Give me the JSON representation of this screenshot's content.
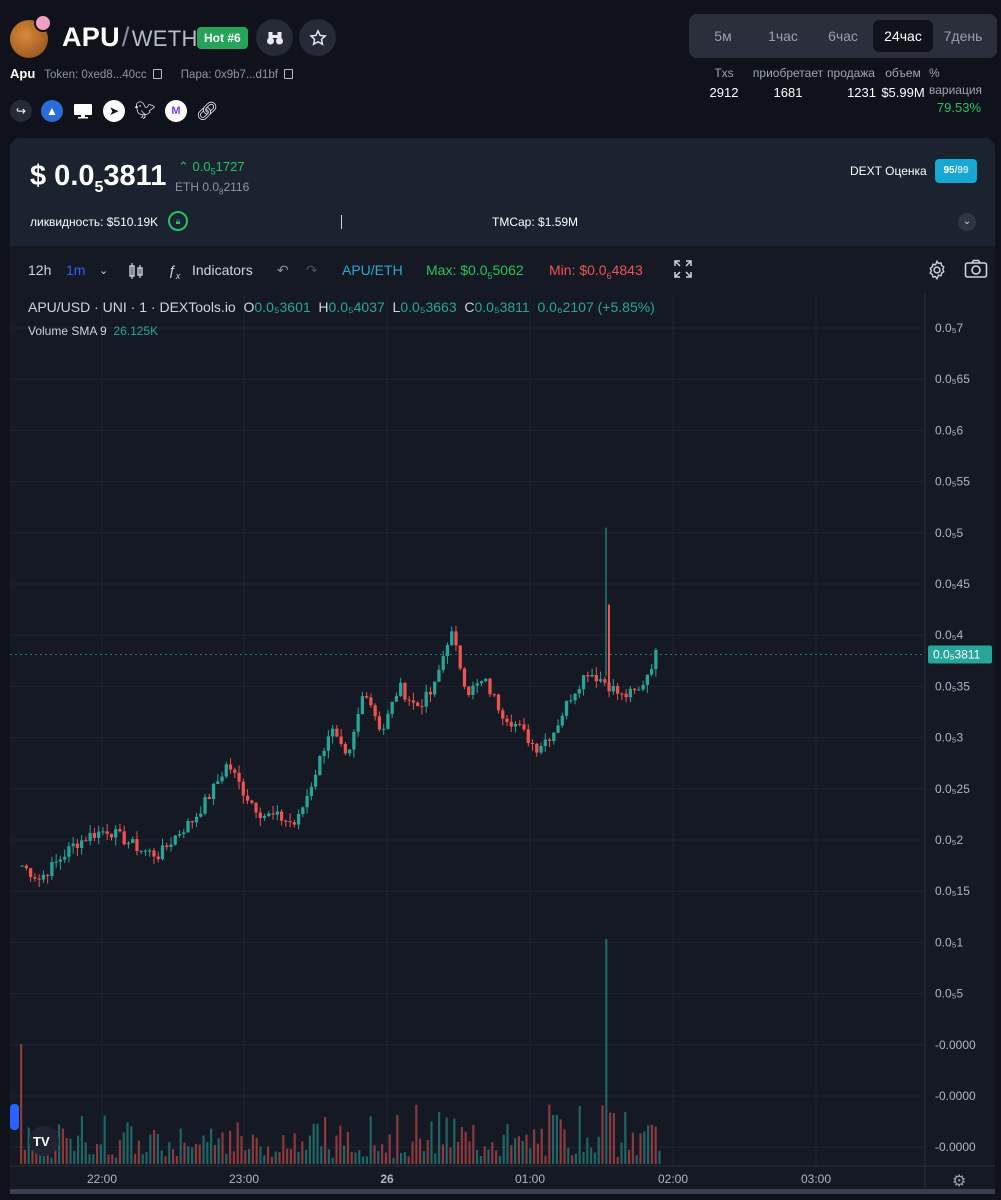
{
  "header": {
    "base": "APU",
    "separator": "/",
    "quote": "WETH",
    "hot_badge": "Hot #6",
    "token_name": "Apu",
    "token_label": "Token: 0xed8...40cc",
    "pair_label": "Пара: 0x9b7...d1bf"
  },
  "timeframes": {
    "items": [
      "5м",
      "1час",
      "6час",
      "24час",
      "7день"
    ],
    "active": "24час"
  },
  "stats": {
    "txs_label": "Txs",
    "txs": "2912",
    "buys_label": "приобретает",
    "buys": "1681",
    "sells_label": "продажа",
    "sells": "1231",
    "volume_label": "объем",
    "volume": "$5.99M",
    "var_label_1": "%",
    "var_label_2": "вариация",
    "variation": "79.53%"
  },
  "price_panel": {
    "price_prefix": "$ 0.0",
    "price_sub": "5",
    "price_digits": "3811",
    "change_prefix": "0.0",
    "change_sub": "5",
    "change_digits": "1727",
    "eth_prefix": "ETH 0.0",
    "eth_sub": "8",
    "eth_digits": "2116",
    "dext_label": "DEXT Оценка",
    "score": "95",
    "score_max": "99",
    "liquidity_label": "ликвидность:",
    "liquidity": "$510.19K",
    "mcap_label": "TMCap:",
    "mcap": "$1.59M"
  },
  "toolbar": {
    "interval_12h": "12h",
    "interval_1m": "1m",
    "indicators": "Indicators",
    "pair": "APU/ETH",
    "max_label": "Max: $0.0",
    "max_sub": "5",
    "max_digits": "5062",
    "min_label": "Min: $0.0",
    "min_sub": "6",
    "min_digits": "4843"
  },
  "legend": {
    "symbol": "APU/USD · UNI · 1 · DEXTools.io",
    "o": "0.0₅3601",
    "h": "0.0₅4037",
    "l": "0.0₅3663",
    "c": "0.0₅3811",
    "change": "0.0₆2107 (+5.85%)",
    "volume_label": "Volume SMA 9",
    "volume_value": "26.125K"
  },
  "colors": {
    "up": "#26a69a",
    "down": "#ef5350",
    "accent_green": "#22c55e",
    "score_bg": "#17a7d3",
    "background": "#151924"
  },
  "chart_data": {
    "type": "candlestick",
    "y_unit_note": "price in units of 1e-5 USD",
    "y_ticks": [
      {
        "label": "0.0₅7",
        "value": 7.0
      },
      {
        "label": "0.0₅65",
        "value": 6.5
      },
      {
        "label": "0.0₅6",
        "value": 6.0
      },
      {
        "label": "0.0₅55",
        "value": 5.5
      },
      {
        "label": "0.0₅5",
        "value": 5.0
      },
      {
        "label": "0.0₅45",
        "value": 4.5
      },
      {
        "label": "0.0₅4",
        "value": 4.0
      },
      {
        "label": "0.0₅35",
        "value": 3.5
      },
      {
        "label": "0.0₅3",
        "value": 3.0
      },
      {
        "label": "0.0₅25",
        "value": 2.5
      },
      {
        "label": "0.0₅2",
        "value": 2.0
      },
      {
        "label": "0.0₅15",
        "value": 1.5
      },
      {
        "label": "0.0₅1",
        "value": 1.0
      },
      {
        "label": "0.0₅5",
        "value": 0.5
      },
      {
        "label": "-0.0000",
        "value": 0.0
      },
      {
        "label": "-0.0000",
        "value": -0.5
      },
      {
        "label": "-0.0000",
        "value": -1.0
      }
    ],
    "x_ticks": [
      "22:00",
      "23:00",
      "26",
      "01:00",
      "02:00",
      "03:00"
    ],
    "last_price_label": "0.0₅3811",
    "last_price": 3.811,
    "series_close": [
      1.75,
      1.62,
      1.78,
      1.95,
      2.05,
      2.1,
      2.0,
      1.9,
      1.85,
      2.05,
      2.2,
      2.45,
      2.75,
      2.45,
      2.25,
      2.22,
      2.15,
      2.6,
      3.1,
      2.75,
      3.5,
      3.05,
      3.5,
      3.3,
      3.45,
      4.05,
      3.45,
      3.55,
      3.25,
      3.1,
      2.9,
      3.05,
      3.4,
      3.65,
      3.55,
      3.4,
      3.45,
      3.811
    ],
    "spikes": [
      {
        "value": 5.05
      },
      {
        "value": 4.3
      }
    ],
    "volume": {
      "base": 0,
      "note": "volume bars near bottom, largest spike near 02:00 minus ~0:25"
    }
  }
}
